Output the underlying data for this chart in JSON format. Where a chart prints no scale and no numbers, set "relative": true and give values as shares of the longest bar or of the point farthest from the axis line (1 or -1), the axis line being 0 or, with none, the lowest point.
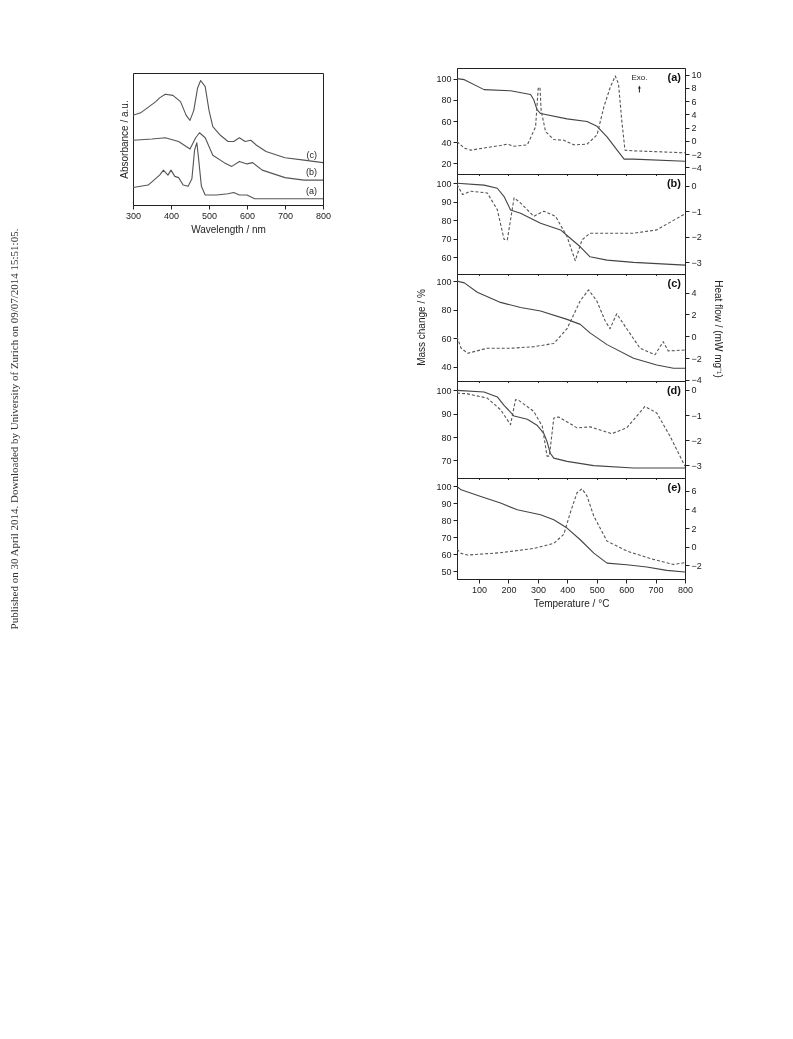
{
  "chart_data": [
    {
      "type": "line",
      "relative": true,
      "xlabel": "Wavelength / nm",
      "ylabel": "Absorbance / a.u.",
      "xlim": [
        300,
        800
      ],
      "xticks": [
        300,
        400,
        500,
        600,
        700,
        800
      ],
      "annotations": [
        "Published on 30 April 2014. Downloaded by University of Zurich on 09/07/2014 15:51:05."
      ],
      "series": [
        {
          "name": "(c)",
          "color": "#555555",
          "x": [
            300,
            320,
            360,
            370,
            385,
            405,
            425,
            440,
            450,
            460,
            470,
            478,
            490,
            500,
            510,
            530,
            550,
            565,
            580,
            595,
            610,
            625,
            650,
            700,
            750,
            800
          ],
          "values": [
            0.72,
            0.74,
            0.83,
            0.86,
            0.89,
            0.88,
            0.83,
            0.72,
            0.68,
            0.76,
            0.94,
            1.0,
            0.95,
            0.76,
            0.63,
            0.56,
            0.51,
            0.51,
            0.54,
            0.51,
            0.52,
            0.48,
            0.43,
            0.38,
            0.36,
            0.34
          ]
        },
        {
          "name": "(b)",
          "color": "#555555",
          "x": [
            300,
            350,
            385,
            420,
            450,
            465,
            475,
            490,
            510,
            540,
            560,
            580,
            600,
            615,
            640,
            700,
            750,
            800
          ],
          "values": [
            0.52,
            0.53,
            0.54,
            0.51,
            0.45,
            0.54,
            0.58,
            0.54,
            0.4,
            0.34,
            0.31,
            0.35,
            0.33,
            0.34,
            0.28,
            0.22,
            0.2,
            0.2
          ]
        },
        {
          "name": "(a)",
          "color": "#555555",
          "x": [
            300,
            340,
            370,
            380,
            392,
            400,
            410,
            420,
            432,
            445,
            455,
            462,
            468,
            472,
            480,
            490,
            520,
            550,
            565,
            580,
            600,
            620,
            650,
            800
          ],
          "values": [
            0.14,
            0.16,
            0.24,
            0.28,
            0.24,
            0.28,
            0.23,
            0.22,
            0.16,
            0.15,
            0.21,
            0.44,
            0.5,
            0.39,
            0.15,
            0.08,
            0.08,
            0.09,
            0.1,
            0.08,
            0.08,
            0.05,
            0.05,
            0.05
          ]
        }
      ]
    },
    {
      "type": "line",
      "xlim": [
        25,
        800
      ],
      "xticks": [
        100,
        200,
        300,
        400,
        500,
        600,
        700,
        800
      ],
      "ylim": [
        10,
        110
      ],
      "yticks": [
        20,
        40,
        60,
        80,
        100
      ],
      "y2lim": [
        -5,
        11
      ],
      "y2ticks": [
        -4,
        -2,
        0,
        2,
        4,
        6,
        8,
        10
      ],
      "tick_labels": "y",
      "annotations": [
        "(a)",
        "Exo."
      ],
      "series": [
        {
          "color": "#444444",
          "line_style": "solid",
          "x": [
            25,
            50,
            117,
            207,
            275,
            286,
            297,
            309,
            399,
            467,
            501,
            535,
            568,
            593,
            625,
            800
          ],
          "values": [
            100,
            99,
            89.6,
            88.5,
            85,
            80,
            70.7,
            67,
            62,
            59.5,
            55,
            45,
            33,
            24,
            24,
            22
          ]
        },
        {
          "color": "#555555",
          "line_style": "dashed",
          "axis": "y2",
          "x": [
            25,
            50,
            72,
            128,
            173,
            196,
            219,
            264,
            292,
            301,
            307,
            311,
            326,
            354,
            388,
            422,
            467,
            501,
            524,
            546,
            563,
            574,
            585,
            596,
            625,
            800
          ],
          "values": [
            -0.1,
            -1.1,
            -1.4,
            -1.0,
            -0.7,
            -0.5,
            -0.8,
            -0.6,
            2.1,
            7.9,
            8.1,
            4.6,
            1.4,
            0.2,
            0.1,
            -0.6,
            -0.5,
            0.9,
            5.1,
            8.1,
            9.8,
            8.6,
            3.1,
            -1.4,
            -1.5,
            -1.8
          ]
        }
      ]
    },
    {
      "type": "line",
      "xlim": [
        25,
        800
      ],
      "xticks": [
        100,
        200,
        300,
        400,
        500,
        600,
        700,
        800
      ],
      "ylim": [
        51,
        105
      ],
      "yticks": [
        60,
        70,
        80,
        90,
        100
      ],
      "y2lim": [
        -3.45,
        0.45
      ],
      "y2ticks": [
        -3,
        -2,
        -1,
        0
      ],
      "tick_labels": "y",
      "annotations": [
        "(b)"
      ],
      "series": [
        {
          "color": "#444444",
          "line_style": "solid",
          "x": [
            25,
            117,
            162,
            185,
            207,
            241,
            309,
            377,
            410,
            444,
            477,
            535,
            625,
            800
          ],
          "values": [
            100,
            99,
            97.3,
            92.8,
            85.6,
            83.8,
            78.4,
            74.8,
            70.3,
            65.7,
            60.3,
            58.5,
            57.3,
            55.8
          ]
        },
        {
          "color": "#555555",
          "line_style": "dashed",
          "axis": "y2",
          "x": [
            25,
            44,
            72,
            128,
            162,
            185,
            196,
            219,
            241,
            286,
            320,
            360,
            399,
            427,
            450,
            477,
            625,
            704,
            800
          ],
          "values": [
            0.04,
            -0.35,
            -0.22,
            -0.29,
            -0.94,
            -2.1,
            -2.12,
            -0.48,
            -0.68,
            -1.2,
            -1.0,
            -1.2,
            -1.99,
            -2.93,
            -2.12,
            -1.86,
            -1.86,
            -1.73,
            -1.1
          ]
        }
      ]
    },
    {
      "type": "line",
      "xlim": [
        25,
        800
      ],
      "xticks": [
        100,
        200,
        300,
        400,
        500,
        600,
        700,
        800
      ],
      "ylim": [
        30,
        105
      ],
      "yticks": [
        40,
        60,
        80,
        100
      ],
      "y2lim": [
        -4.1,
        5.7
      ],
      "y2ticks": [
        -4,
        -2,
        0,
        2,
        4
      ],
      "tick_labels": "y",
      "ylabel": "Mass change / %",
      "y2label": "Heat flow / (mW mg⁻¹)",
      "annotations": [
        "(c)"
      ],
      "series": [
        {
          "color": "#444444",
          "line_style": "solid",
          "x": [
            25,
            50,
            94,
            173,
            241,
            309,
            399,
            444,
            477,
            535,
            625,
            704,
            761,
            800
          ],
          "values": [
            100,
            98.8,
            92.2,
            85.1,
            81.5,
            79.1,
            73.2,
            69.7,
            63.7,
            55.5,
            46,
            41.2,
            38.9,
            38.9
          ]
        },
        {
          "color": "#555555",
          "line_style": "dashed",
          "axis": "y2",
          "x": [
            25,
            39,
            61,
            128,
            207,
            286,
            354,
            399,
            444,
            472,
            500,
            528,
            545,
            568,
            602,
            647,
            698,
            726,
            743,
            800
          ],
          "values": [
            -0.06,
            -1.1,
            -1.56,
            -1.1,
            -1.1,
            -0.96,
            -0.66,
            0.69,
            3.25,
            4.24,
            3.25,
            1.44,
            0.69,
            2.05,
            0.69,
            -1.1,
            -1.7,
            -0.5,
            -1.35,
            -1.26
          ]
        }
      ]
    },
    {
      "type": "line",
      "xlim": [
        25,
        800
      ],
      "xticks": [
        100,
        200,
        300,
        400,
        500,
        600,
        700,
        800
      ],
      "ylim": [
        62.5,
        104
      ],
      "yticks": [
        70,
        80,
        90,
        100
      ],
      "y2lim": [
        -3.5,
        0.35
      ],
      "y2ticks": [
        -3,
        -2,
        -1,
        0
      ],
      "tick_labels": "y",
      "annotations": [
        "(d)"
      ],
      "series": [
        {
          "color": "#444444",
          "line_style": "solid",
          "x": [
            25,
            117,
            162,
            185,
            219,
            264,
            297,
            320,
            331,
            342,
            354,
            399,
            490,
            625,
            800
          ],
          "values": [
            100,
            99.3,
            97.2,
            93.6,
            89,
            87.6,
            85.1,
            81.6,
            78.1,
            73.1,
            71,
            69.6,
            67.8,
            66.8,
            66.8
          ]
        },
        {
          "color": "#555555",
          "line_style": "dashed",
          "axis": "y2",
          "x": [
            25,
            61,
            128,
            173,
            207,
            224,
            235,
            286,
            315,
            331,
            339,
            354,
            371,
            433,
            478,
            551,
            602,
            664,
            704,
            749,
            800
          ],
          "values": [
            -0.13,
            -0.16,
            -0.33,
            -0.79,
            -1.38,
            -0.39,
            -0.42,
            -0.86,
            -1.45,
            -2.63,
            -2.63,
            -1.12,
            -1.08,
            -1.51,
            -1.47,
            -1.74,
            -1.51,
            -0.66,
            -0.92,
            -1.84,
            -3.03
          ]
        }
      ]
    },
    {
      "type": "line",
      "xlim": [
        25,
        800
      ],
      "xticks": [
        100,
        200,
        300,
        400,
        500,
        600,
        700,
        800
      ],
      "ylim": [
        45.3,
        105
      ],
      "yticks": [
        50,
        60,
        70,
        80,
        90,
        100
      ],
      "y2lim": [
        -3.45,
        7.35
      ],
      "y2ticks": [
        -2,
        0,
        2,
        4,
        6
      ],
      "xlabel": "Temperature / °C",
      "annotations": [
        "(e)"
      ],
      "series": [
        {
          "color": "#444444",
          "line_style": "solid",
          "x": [
            25,
            39,
            106,
            173,
            230,
            309,
            354,
            399,
            444,
            490,
            535,
            602,
            670,
            738,
            800
          ],
          "values": [
            100,
            98,
            94.1,
            90.2,
            86.2,
            83.3,
            80.3,
            75.4,
            68.5,
            60.6,
            54.7,
            53.7,
            52.4,
            50.4,
            49.4
          ]
        },
        {
          "color": "#555555",
          "line_style": "dashed",
          "axis": "y2",
          "x": [
            25,
            39,
            61,
            173,
            286,
            354,
            388,
            410,
            433,
            450,
            467,
            490,
            535,
            602,
            692,
            761,
            800
          ],
          "values": [
            -0.28,
            -0.71,
            -0.89,
            -0.64,
            -0.18,
            0.36,
            1.32,
            3.63,
            5.77,
            6.19,
            5.41,
            3.27,
            0.6,
            -0.46,
            -1.35,
            -1.89,
            -1.71
          ]
        }
      ]
    }
  ]
}
